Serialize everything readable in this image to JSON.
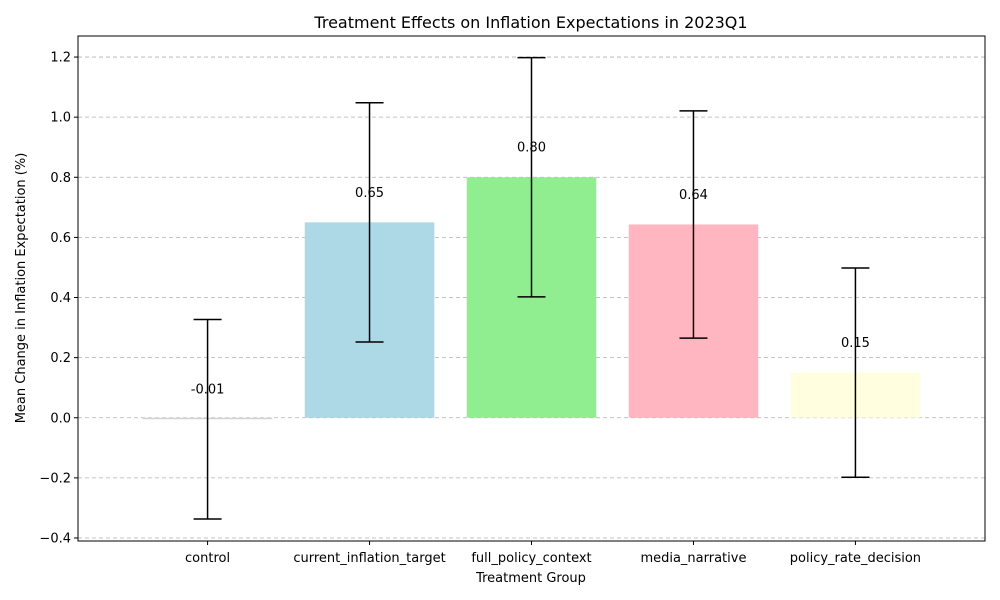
{
  "chart_data": {
    "type": "bar",
    "title": "Treatment Effects on Inflation Expectations in 2023Q1",
    "xlabel": "Treatment Group",
    "ylabel": "Mean Change in Inflation Expectation (%)",
    "categories": [
      "control",
      "current_inflation_target",
      "full_policy_context",
      "media_narrative",
      "policy_rate_decision"
    ],
    "values": [
      -0.005,
      0.65,
      0.8,
      0.643,
      0.15
    ],
    "errors": [
      0.332,
      0.398,
      0.398,
      0.378,
      0.348
    ],
    "value_labels": [
      "-0.01",
      "0.65",
      "0.80",
      "0.64",
      "0.15"
    ],
    "colors": [
      "#d3d3d3",
      "#add8e6",
      "#90ee90",
      "#ffb6c1",
      "#ffffe0"
    ],
    "ylim": [
      -0.41,
      1.27
    ],
    "yticks": [
      -0.4,
      -0.2,
      0.0,
      0.2,
      0.4,
      0.6,
      0.8,
      1.0,
      1.2
    ],
    "ytick_labels": [
      "−0.4",
      "−0.2",
      "0.0",
      "0.2",
      "0.4",
      "0.6",
      "0.8",
      "1.0",
      "1.2"
    ],
    "grid": "y-dashed",
    "legend": "none"
  }
}
